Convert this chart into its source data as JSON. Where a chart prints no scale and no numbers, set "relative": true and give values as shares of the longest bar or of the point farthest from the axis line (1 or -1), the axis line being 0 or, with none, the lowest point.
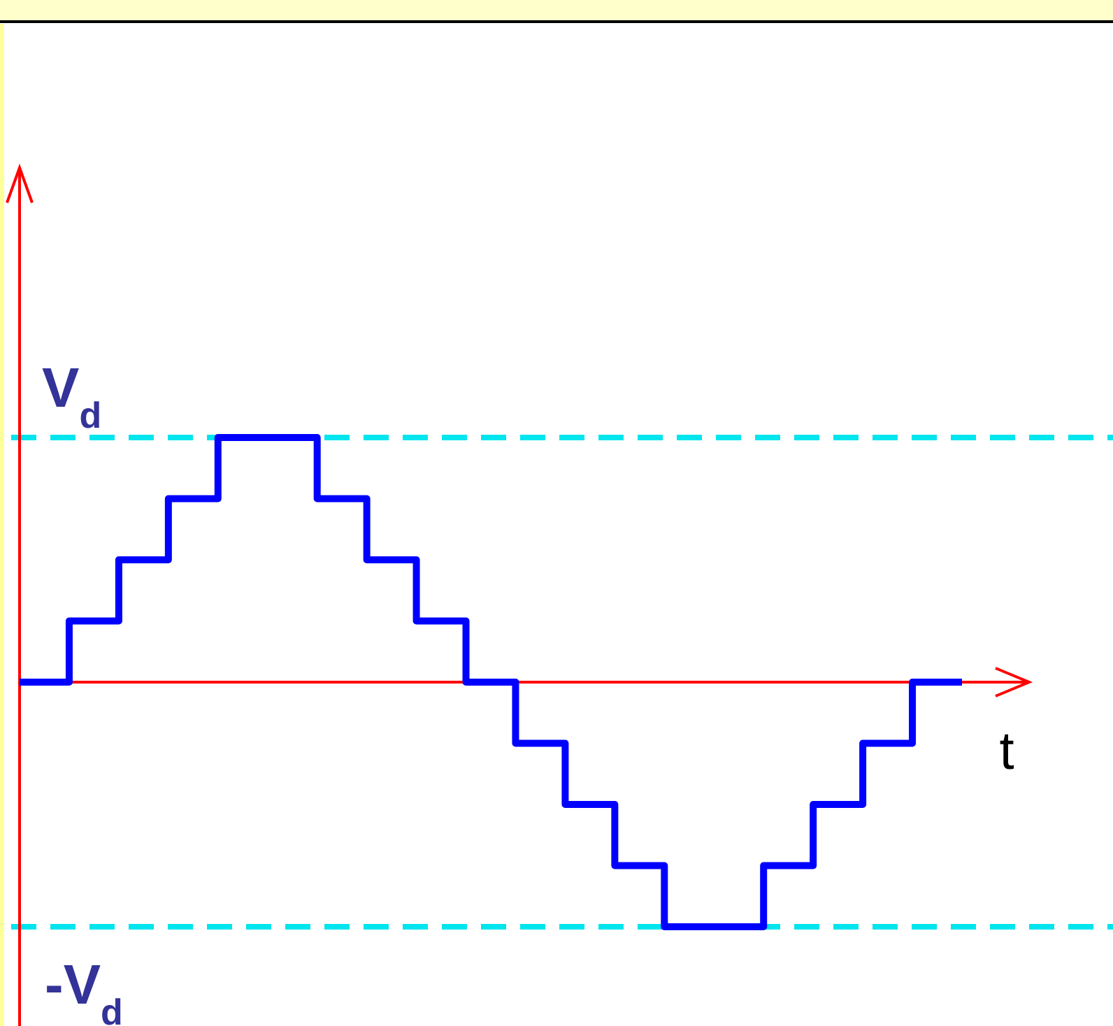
{
  "chart_data": {
    "type": "step",
    "relative": true,
    "xlabel": "t",
    "categories": [
      null,
      null,
      null,
      null,
      null,
      null,
      null,
      null,
      null,
      null,
      null,
      null,
      null,
      null,
      null,
      null,
      null,
      null,
      null,
      null
    ],
    "series": [
      {
        "color": "#0000ff",
        "values": [
          0,
          0.25,
          0.5,
          0.75,
          1,
          1,
          0.75,
          0.5,
          0.25,
          0,
          -0.25,
          -0.5,
          -0.75,
          -1,
          -1,
          -0.75,
          -0.5,
          -0.25,
          0,
          0
        ]
      }
    ],
    "ref_lines": [
      {
        "axis": "y",
        "value": 1,
        "label": "V$_{d}$",
        "color": "#00e5ee",
        "line_style": "dashed"
      },
      {
        "axis": "y",
        "value": -1,
        "label": "-V$_{d}$",
        "color": "#00e5ee",
        "line_style": "dashed"
      },
      {
        "axis": "y",
        "value": 0,
        "color": "#ff0000",
        "line_style": "solid"
      }
    ]
  }
}
